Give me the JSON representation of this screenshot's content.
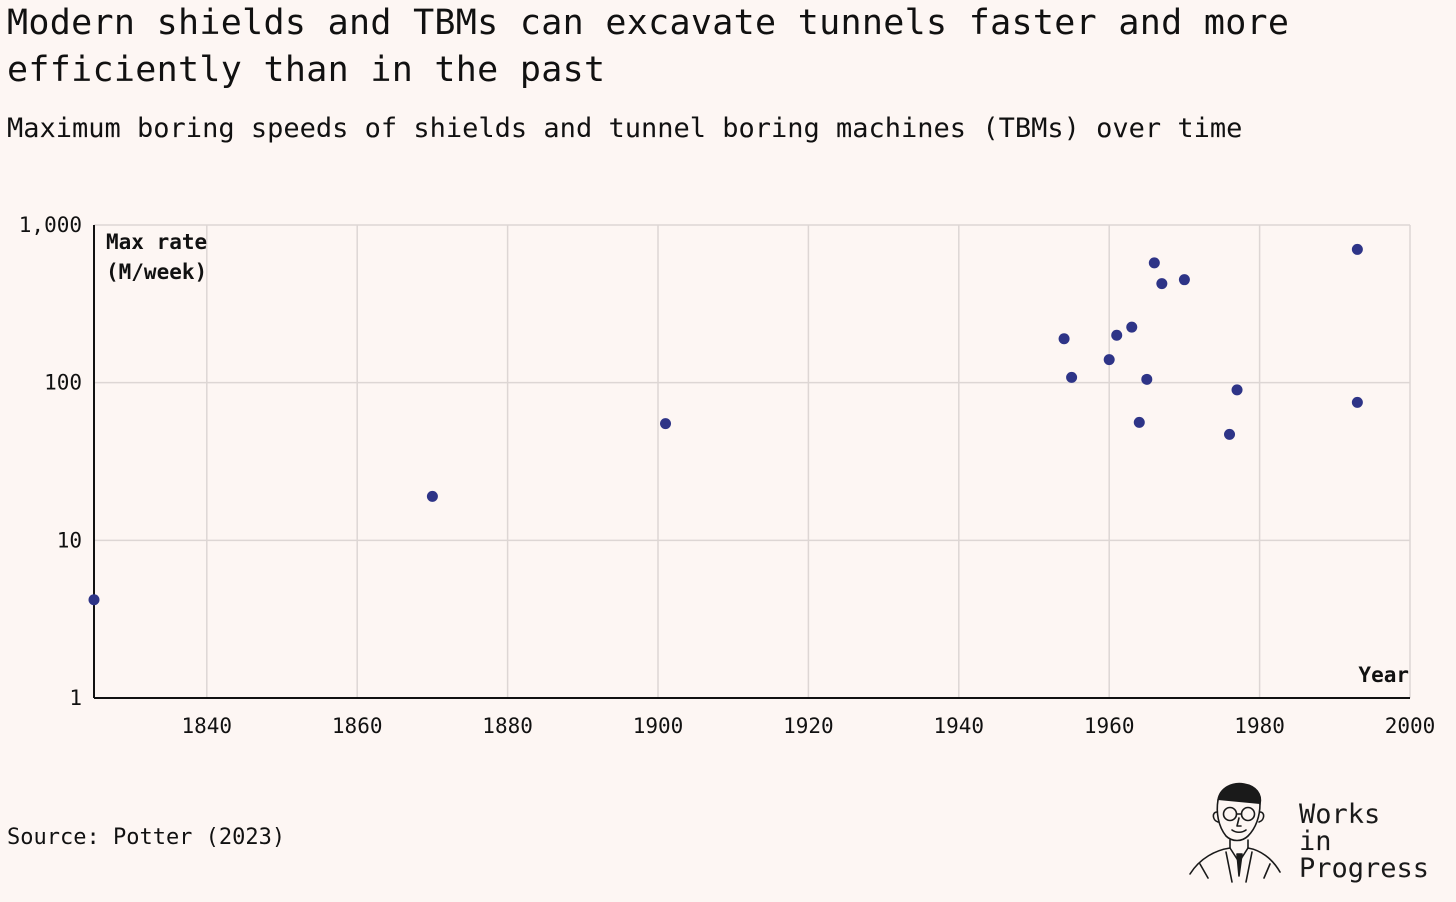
{
  "title": "Modern shields and TBMs can excavate tunnels faster and more efficiently than in the past",
  "subtitle": "Maximum boring speeds of shields and tunnel boring machines (TBMs) over time",
  "source": "Source: Potter (2023)",
  "brand": {
    "line1": "Works",
    "line2": "in",
    "line3": "Progress"
  },
  "colors": {
    "background": "#fdf6f3",
    "point": "#2e3487",
    "grid": "#ddd6d4",
    "axis": "#111111"
  },
  "chart_data": {
    "type": "scatter",
    "xlabel": "Year",
    "ylabel_line1": "Max rate",
    "ylabel_line2": "(M/week)",
    "xlim": [
      1825,
      2000
    ],
    "ylim": [
      1,
      1000
    ],
    "yscale": "log",
    "grid": true,
    "xticks": [
      1840,
      1860,
      1880,
      1900,
      1920,
      1940,
      1960,
      1980,
      2000
    ],
    "xtick_labels": [
      "1840",
      "1860",
      "1880",
      "1900",
      "1920",
      "1940",
      "1960",
      "1980",
      "2000"
    ],
    "yticks": [
      1,
      10,
      100,
      1000
    ],
    "ytick_labels": [
      "1",
      "10",
      "100",
      "1,000"
    ],
    "points": [
      {
        "x": 1825,
        "y": 4.2
      },
      {
        "x": 1870,
        "y": 19
      },
      {
        "x": 1901,
        "y": 55
      },
      {
        "x": 1954,
        "y": 190
      },
      {
        "x": 1955,
        "y": 108
      },
      {
        "x": 1960,
        "y": 140
      },
      {
        "x": 1961,
        "y": 200
      },
      {
        "x": 1963,
        "y": 225
      },
      {
        "x": 1964,
        "y": 56
      },
      {
        "x": 1965,
        "y": 105
      },
      {
        "x": 1966,
        "y": 575
      },
      {
        "x": 1967,
        "y": 425
      },
      {
        "x": 1970,
        "y": 450
      },
      {
        "x": 1976,
        "y": 47
      },
      {
        "x": 1977,
        "y": 90
      },
      {
        "x": 1993,
        "y": 700
      },
      {
        "x": 1993,
        "y": 75
      }
    ]
  }
}
